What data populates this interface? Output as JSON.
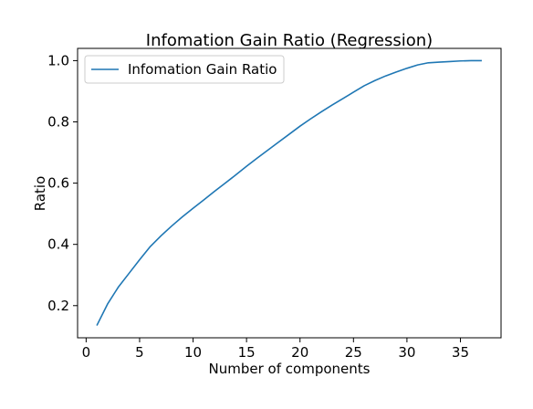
{
  "chart_data": {
    "type": "line",
    "title": "Infomation Gain Ratio (Regression)",
    "xlabel": "Number of components",
    "ylabel": "Ratio",
    "xlim": [
      -0.8,
      38.8
    ],
    "ylim": [
      0.095,
      1.04
    ],
    "xticks": [
      0,
      5,
      10,
      15,
      20,
      25,
      30,
      35
    ],
    "yticks": [
      0.2,
      0.4,
      0.6,
      0.8,
      1.0
    ],
    "ytick_labels": [
      "0.2",
      "0.4",
      "0.6",
      "0.8",
      "1.0"
    ],
    "grid": false,
    "legend_position": "top-left",
    "series": [
      {
        "name": "Infomation Gain Ratio",
        "color": "#1f77b4",
        "x": [
          1,
          2,
          3,
          4,
          5,
          6,
          7,
          8,
          9,
          10,
          11,
          12,
          13,
          14,
          15,
          16,
          17,
          18,
          19,
          20,
          21,
          22,
          23,
          24,
          25,
          26,
          27,
          28,
          29,
          30,
          31,
          32,
          33,
          34,
          35,
          36,
          37
        ],
        "y": [
          0.135,
          0.205,
          0.26,
          0.305,
          0.35,
          0.393,
          0.428,
          0.46,
          0.49,
          0.518,
          0.545,
          0.573,
          0.6,
          0.627,
          0.655,
          0.682,
          0.708,
          0.734,
          0.76,
          0.786,
          0.81,
          0.833,
          0.855,
          0.876,
          0.897,
          0.918,
          0.935,
          0.95,
          0.963,
          0.975,
          0.986,
          0.993,
          0.995,
          0.997,
          0.999,
          1.0,
          1.0
        ]
      }
    ]
  }
}
